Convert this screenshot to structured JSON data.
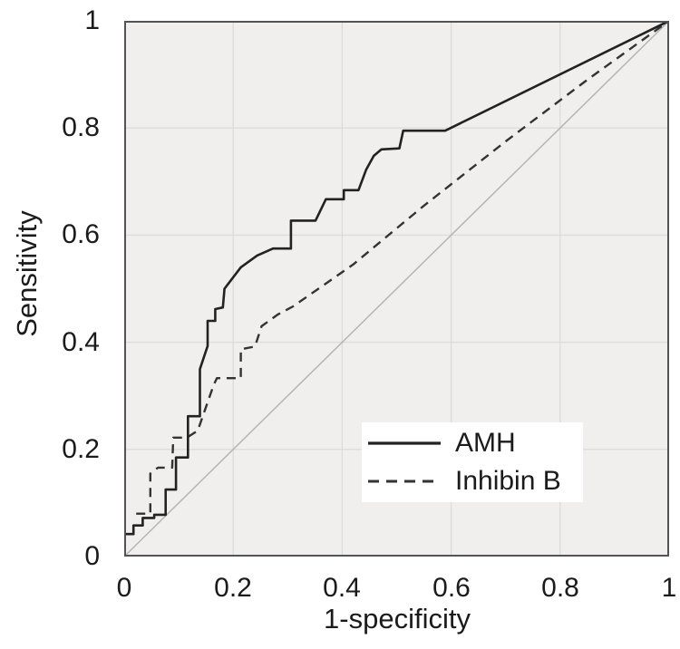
{
  "figure_type": "roc-curve-plot",
  "axes": {
    "y_title": "Sensitivity",
    "x_title": "1-specificity"
  },
  "legend": {
    "items": [
      {
        "label": "AMH",
        "line_style": "solid"
      },
      {
        "label": "Inhibin B",
        "line_style": "dashed"
      }
    ]
  },
  "colors": {
    "page_background": "#ffffff",
    "plot_background": "#f0efee",
    "gridline": "#dcdcda",
    "plot_border": "#545454",
    "amh_line": "#222222",
    "inhibin_line": "#333333",
    "reference_line": "#b5b5b5",
    "legend_background": "#ffffff",
    "text": "#1b1b1b"
  },
  "chart_data": {
    "type": "line",
    "title": "",
    "xlabel": "1-specificity",
    "ylabel": "Sensitivity",
    "xlim": [
      0,
      1
    ],
    "ylim": [
      0,
      1
    ],
    "grid": true,
    "grid_tick_values": [
      0.2,
      0.4,
      0.6,
      0.8
    ],
    "x_tick_labels": [
      "0",
      "0.2",
      "0.4",
      "0.6",
      "0.8",
      "1"
    ],
    "x_tick_values": [
      0,
      0.2,
      0.4,
      0.6,
      0.8,
      1
    ],
    "y_tick_labels_top_to_bottom": [
      "1",
      "0.8",
      "0.6",
      "0.4",
      "0.2",
      "0"
    ],
    "y_tick_values": [
      0,
      0.2,
      0.4,
      0.6,
      0.8,
      1
    ],
    "legend_position": "inside lower right",
    "series": [
      {
        "name": "AMH",
        "line_style": "solid",
        "points": [
          [
            0.0,
            0.042
          ],
          [
            0.017,
            0.042
          ],
          [
            0.017,
            0.058
          ],
          [
            0.034,
            0.058
          ],
          [
            0.034,
            0.072
          ],
          [
            0.055,
            0.072
          ],
          [
            0.055,
            0.078
          ],
          [
            0.076,
            0.078
          ],
          [
            0.076,
            0.125
          ],
          [
            0.095,
            0.125
          ],
          [
            0.095,
            0.185
          ],
          [
            0.117,
            0.185
          ],
          [
            0.117,
            0.262
          ],
          [
            0.139,
            0.262
          ],
          [
            0.139,
            0.35
          ],
          [
            0.153,
            0.393
          ],
          [
            0.153,
            0.44
          ],
          [
            0.167,
            0.44
          ],
          [
            0.167,
            0.462
          ],
          [
            0.181,
            0.465
          ],
          [
            0.184,
            0.5
          ],
          [
            0.214,
            0.54
          ],
          [
            0.244,
            0.562
          ],
          [
            0.273,
            0.575
          ],
          [
            0.306,
            0.575
          ],
          [
            0.306,
            0.627
          ],
          [
            0.351,
            0.627
          ],
          [
            0.37,
            0.667
          ],
          [
            0.403,
            0.667
          ],
          [
            0.403,
            0.684
          ],
          [
            0.43,
            0.684
          ],
          [
            0.444,
            0.722
          ],
          [
            0.458,
            0.748
          ],
          [
            0.472,
            0.76
          ],
          [
            0.505,
            0.762
          ],
          [
            0.512,
            0.795
          ],
          [
            0.589,
            0.795
          ],
          [
            1.0,
            1.0
          ]
        ]
      },
      {
        "name": "Inhibin B",
        "line_style": "dashed",
        "points": [
          [
            0.022,
            0.08
          ],
          [
            0.048,
            0.08
          ],
          [
            0.048,
            0.155
          ],
          [
            0.062,
            0.166
          ],
          [
            0.088,
            0.166
          ],
          [
            0.09,
            0.222
          ],
          [
            0.115,
            0.222
          ],
          [
            0.135,
            0.235
          ],
          [
            0.164,
            0.32
          ],
          [
            0.17,
            0.333
          ],
          [
            0.214,
            0.333
          ],
          [
            0.214,
            0.387
          ],
          [
            0.24,
            0.392
          ],
          [
            0.252,
            0.43
          ],
          [
            0.282,
            0.452
          ],
          [
            0.31,
            0.467
          ],
          [
            0.42,
            0.545
          ],
          [
            0.55,
            0.655
          ],
          [
            0.7,
            0.775
          ],
          [
            0.85,
            0.89
          ],
          [
            1.0,
            1.0
          ]
        ]
      },
      {
        "name": "chance diagonal",
        "line_style": "thin-solid",
        "points": [
          [
            0,
            0
          ],
          [
            1,
            1
          ]
        ]
      }
    ]
  }
}
